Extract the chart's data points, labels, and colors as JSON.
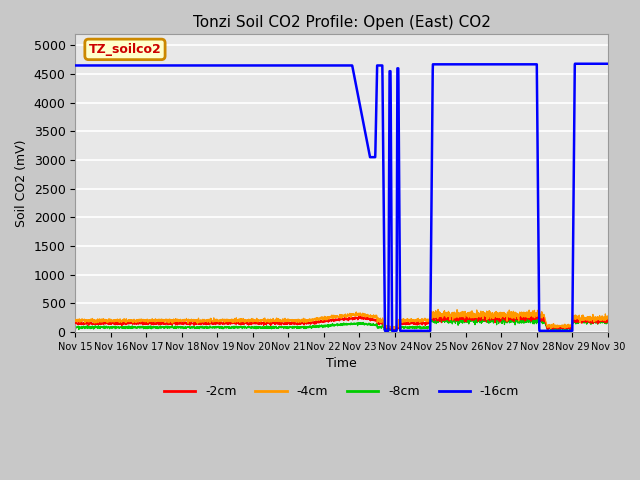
{
  "title": "Tonzi Soil CO2 Profile: Open (East) CO2",
  "ylabel": "Soil CO2 (mV)",
  "xlabel": "Time",
  "ylim": [
    0,
    5200
  ],
  "yticks": [
    0,
    500,
    1000,
    1500,
    2000,
    2500,
    3000,
    3500,
    4000,
    4500,
    5000
  ],
  "fig_bg_color": "#c8c8c8",
  "plot_bg_color": "#e8e8e8",
  "grid_color": "#ffffff",
  "legend_label": "TZ_soilco2",
  "legend_box_color": "#ffffcc",
  "legend_box_edge": "#cc8800",
  "series_colors": {
    "-2cm": "#ff0000",
    "-4cm": "#ff9900",
    "-8cm": "#00cc00",
    "-16cm": "#0000ff"
  },
  "x_start": 15,
  "x_end": 30,
  "xtick_positions": [
    15,
    16,
    17,
    18,
    19,
    20,
    21,
    22,
    23,
    24,
    25,
    26,
    27,
    28,
    29,
    30
  ],
  "xtick_labels": [
    "Nov 15",
    "Nov 16",
    "Nov 17",
    "Nov 18",
    "Nov 19",
    "Nov 20",
    "Nov 21",
    "Nov 22",
    "Nov 23",
    "Nov 24",
    "Nov 25",
    "Nov 26",
    "Nov 27",
    "Nov 28",
    "Nov 29",
    "Nov 30"
  ]
}
